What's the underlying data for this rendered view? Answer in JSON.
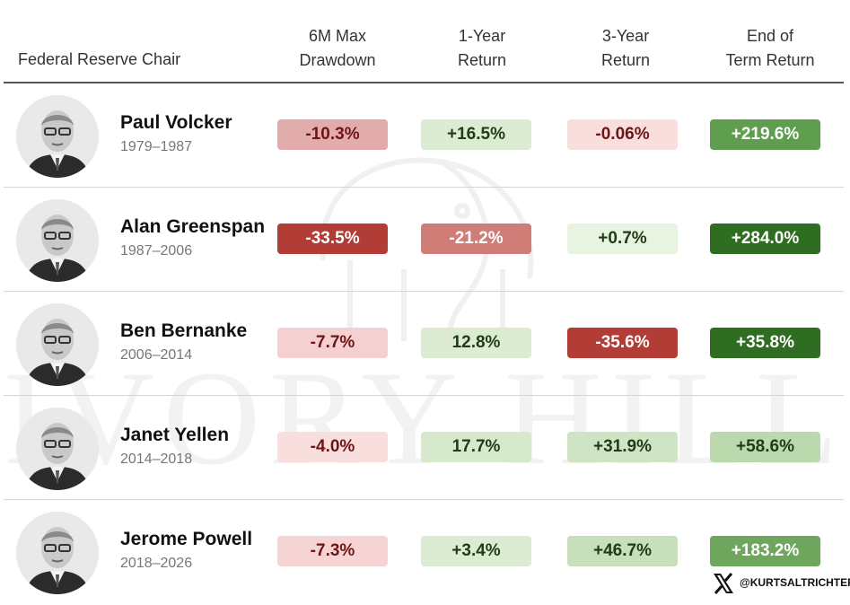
{
  "watermark": "IVORY HILL",
  "header": {
    "chair": "Federal Reserve Chair",
    "columns": [
      {
        "line1": "6M Max",
        "line2": "Drawdown"
      },
      {
        "line1": "1-Year",
        "line2": "Return"
      },
      {
        "line1": "3-Year",
        "line2": "Return"
      },
      {
        "line1": "End of",
        "line2": "Term Return"
      }
    ]
  },
  "chart_data": {
    "type": "table",
    "columns": [
      "Federal Reserve Chair",
      "6M Max Drawdown",
      "1-Year Return",
      "3-Year Return",
      "End of Term Return"
    ],
    "rows": [
      {
        "name": "Paul Volcker",
        "term": "1979–1987",
        "cells": [
          {
            "text": "-10.3%",
            "bg": "#e3acac",
            "fg": "#6e1515"
          },
          {
            "text": "+16.5%",
            "bg": "#dcecd3",
            "fg": "#1f3d14"
          },
          {
            "text": "-0.06%",
            "bg": "#f9dede",
            "fg": "#6e1515"
          },
          {
            "text": "+219.6%",
            "bg": "#5e9e4e",
            "fg": "#ffffff"
          }
        ]
      },
      {
        "name": "Alan Greenspan",
        "term": "1987–2006",
        "cells": [
          {
            "text": "-33.5%",
            "bg": "#b23d36",
            "fg": "#ffffff"
          },
          {
            "text": "-21.2%",
            "bg": "#d07c77",
            "fg": "#ffffff"
          },
          {
            "text": "+0.7%",
            "bg": "#e8f3e2",
            "fg": "#1f3d14"
          },
          {
            "text": "+284.0%",
            "bg": "#2e6d22",
            "fg": "#ffffff"
          }
        ]
      },
      {
        "name": "Ben Bernanke",
        "term": "2006–2014",
        "cells": [
          {
            "text": "-7.7%",
            "bg": "#f5d0d0",
            "fg": "#6e1515"
          },
          {
            "text": "12.8%",
            "bg": "#dcecd3",
            "fg": "#1f3d14"
          },
          {
            "text": "-35.6%",
            "bg": "#b23d36",
            "fg": "#ffffff"
          },
          {
            "text": "+35.8%",
            "bg": "#2e6d22",
            "fg": "#ffffff"
          }
        ]
      },
      {
        "name": "Janet Yellen",
        "term": "2014–2018",
        "cells": [
          {
            "text": "-4.0%",
            "bg": "#f9dede",
            "fg": "#6e1515"
          },
          {
            "text": "17.7%",
            "bg": "#d7e9cd",
            "fg": "#1f3d14"
          },
          {
            "text": "+31.9%",
            "bg": "#cfe4c4",
            "fg": "#1f3d14"
          },
          {
            "text": "+58.6%",
            "bg": "#bcd9ae",
            "fg": "#1f3d14"
          }
        ]
      },
      {
        "name": "Jerome Powell",
        "term": "2018–2026",
        "cells": [
          {
            "text": "-7.3%",
            "bg": "#f7d4d4",
            "fg": "#6e1515"
          },
          {
            "text": "+3.4%",
            "bg": "#dcecd3",
            "fg": "#1f3d14"
          },
          {
            "text": "+46.7%",
            "bg": "#c7dfba",
            "fg": "#1f3d14"
          },
          {
            "text": "+183.2%",
            "bg": "#6ea65d",
            "fg": "#ffffff"
          }
        ]
      }
    ]
  },
  "footer": {
    "handle": "@KURTSALTRICHTER",
    "icon": "x-logo-icon"
  }
}
